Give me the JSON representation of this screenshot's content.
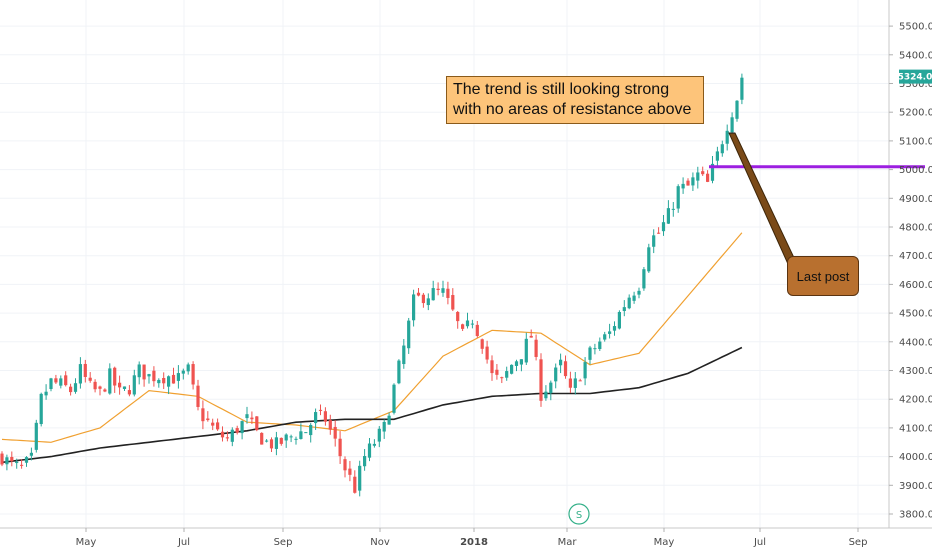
{
  "chart_data": {
    "type": "candlestick",
    "x_labels": [
      "May",
      "Jul",
      "Sep",
      "Nov",
      "2018",
      "Mar",
      "May",
      "Jul",
      "Sep"
    ],
    "year_label": "2018",
    "y_ticks": [
      3800,
      3900,
      4000,
      4100,
      4200,
      4300,
      4400,
      4500,
      4600,
      4700,
      4800,
      4900,
      5000,
      5100,
      5200,
      5300,
      5400,
      5500
    ],
    "y_tick_format": "0.0",
    "ylim": [
      3760,
      5560
    ],
    "last_price": "5324.0",
    "resistance_level": 5010,
    "close_anchors": [
      [
        0,
        4000
      ],
      [
        2,
        3970
      ],
      [
        4,
        3960
      ],
      [
        6,
        3990
      ],
      [
        8,
        4200
      ],
      [
        10,
        4260
      ],
      [
        12,
        4250
      ],
      [
        14,
        4230
      ],
      [
        16,
        4300
      ],
      [
        18,
        4240
      ],
      [
        20,
        4220
      ],
      [
        22,
        4280
      ],
      [
        24,
        4220
      ],
      [
        26,
        4240
      ],
      [
        28,
        4300
      ],
      [
        30,
        4280
      ],
      [
        32,
        4280
      ],
      [
        34,
        4280
      ],
      [
        36,
        4270
      ],
      [
        38,
        4300
      ],
      [
        40,
        4160
      ],
      [
        42,
        4120
      ],
      [
        44,
        4080
      ],
      [
        46,
        4060
      ],
      [
        48,
        4100
      ],
      [
        50,
        4130
      ],
      [
        52,
        4080
      ],
      [
        54,
        4050
      ],
      [
        56,
        4040
      ],
      [
        58,
        4060
      ],
      [
        60,
        4080
      ],
      [
        62,
        4090
      ],
      [
        64,
        4140
      ],
      [
        66,
        4130
      ],
      [
        68,
        4050
      ],
      [
        70,
        3960
      ],
      [
        72,
        3890
      ],
      [
        74,
        4000
      ],
      [
        76,
        4050
      ],
      [
        78,
        4100
      ],
      [
        80,
        4240
      ],
      [
        82,
        4380
      ],
      [
        84,
        4540
      ],
      [
        86,
        4560
      ],
      [
        88,
        4570
      ],
      [
        90,
        4570
      ],
      [
        92,
        4500
      ],
      [
        94,
        4420
      ],
      [
        96,
        4480
      ],
      [
        98,
        4400
      ],
      [
        100,
        4280
      ],
      [
        102,
        4260
      ],
      [
        104,
        4320
      ],
      [
        106,
        4360
      ],
      [
        108,
        4420
      ],
      [
        110,
        4220
      ],
      [
        112,
        4260
      ],
      [
        114,
        4320
      ],
      [
        116,
        4220
      ],
      [
        118,
        4290
      ],
      [
        120,
        4360
      ],
      [
        122,
        4400
      ],
      [
        124,
        4430
      ],
      [
        126,
        4500
      ],
      [
        128,
        4560
      ],
      [
        130,
        4600
      ],
      [
        132,
        4750
      ],
      [
        134,
        4780
      ],
      [
        136,
        4840
      ],
      [
        138,
        4930
      ],
      [
        140,
        4940
      ],
      [
        142,
        4980
      ],
      [
        144,
        4950
      ],
      [
        146,
        5050
      ],
      [
        148,
        5160
      ],
      [
        150,
        5250
      ],
      [
        151,
        5324
      ]
    ],
    "series": [
      {
        "name": "",
        "color": "#f0a030",
        "anchors": [
          [
            0,
            4060
          ],
          [
            10,
            4050
          ],
          [
            20,
            4100
          ],
          [
            30,
            4230
          ],
          [
            40,
            4210
          ],
          [
            50,
            4120
          ],
          [
            60,
            4110
          ],
          [
            70,
            4090
          ],
          [
            80,
            4160
          ],
          [
            90,
            4350
          ],
          [
            100,
            4440
          ],
          [
            110,
            4430
          ],
          [
            120,
            4320
          ],
          [
            130,
            4360
          ],
          [
            140,
            4560
          ],
          [
            151,
            4780
          ]
        ]
      },
      {
        "name": "",
        "color": "#222222",
        "anchors": [
          [
            0,
            3980
          ],
          [
            10,
            4000
          ],
          [
            20,
            4030
          ],
          [
            30,
            4050
          ],
          [
            40,
            4070
          ],
          [
            50,
            4090
          ],
          [
            60,
            4120
          ],
          [
            70,
            4130
          ],
          [
            80,
            4130
          ],
          [
            90,
            4180
          ],
          [
            100,
            4210
          ],
          [
            110,
            4220
          ],
          [
            120,
            4220
          ],
          [
            130,
            4240
          ],
          [
            140,
            4290
          ],
          [
            151,
            4380
          ]
        ]
      }
    ],
    "bull_color": "#26a69a",
    "bear_color": "#ef5350"
  },
  "annotations": {
    "trend_note_line1": "The trend is still looking strong",
    "trend_note_line2": "with no areas of resistance above",
    "last_post_label": "Last post",
    "split_marker": "S"
  },
  "colors": {
    "note_bg": "#fdc47a",
    "last_post_bg": "#b8702f",
    "resistance_line": "#9c1fe0",
    "price_tag": "#26a69a"
  }
}
